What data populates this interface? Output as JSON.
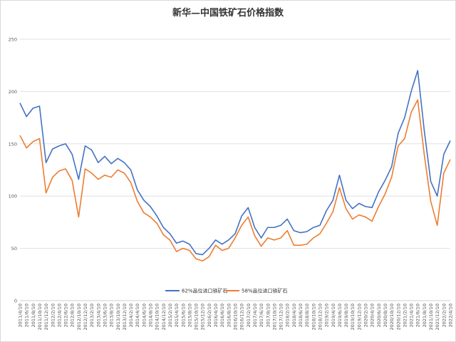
{
  "chart_data": {
    "type": "line",
    "title": "新华—中国铁矿石价格指数",
    "xlabel": "",
    "ylabel": "",
    "ylim": [
      0,
      250
    ],
    "yticks": [
      0,
      50,
      100,
      150,
      200,
      250
    ],
    "grid": true,
    "legend_position": "bottom",
    "colors": {
      "s62": "#4472C4",
      "s58": "#ED7D31",
      "grid": "#d9d9d9",
      "axis": "#bfbfbf"
    },
    "x": [
      "2011/4/10",
      "2011/6/10",
      "2011/8/10",
      "2011/10/10",
      "2011/12/10",
      "2012/2/10",
      "2012/4/10",
      "2012/6/10",
      "2012/8/10",
      "2012/10/10",
      "2012/12/10",
      "2013/2/10",
      "2013/4/10",
      "2013/6/10",
      "2013/8/10",
      "2013/10/10",
      "2013/12/10",
      "2014/2/10",
      "2014/4/10",
      "2014/6/10",
      "2014/8/10",
      "2014/10/10",
      "2014/12/10",
      "2015/2/10",
      "2015/4/10",
      "2015/6/10",
      "2015/8/10",
      "2015/10/10",
      "2015/12/10",
      "2016/2/10",
      "2016/4/10",
      "2016/6/10",
      "2016/8/10",
      "2016/10/10",
      "2016/12/10",
      "2017/2/10",
      "2017/4/10",
      "2017/6/10",
      "2017/8/10",
      "2017/10/10",
      "2017/12/10",
      "2018/2/10",
      "2018/4/10",
      "2018/6/10",
      "2018/8/10",
      "2018/10/10",
      "2018/12/10",
      "2019/2/10",
      "2019/4/10",
      "2019/6/10",
      "2019/8/10",
      "2019/10/10",
      "2019/12/10",
      "2020/2/10",
      "2020/4/10",
      "2020/6/10",
      "2020/8/10",
      "2020/10/10",
      "2020/12/10",
      "2021/2/10",
      "2021/4/10",
      "2021/6/10",
      "2021/8/10",
      "2021/10/10",
      "2021/12/10",
      "2022/2/10",
      "2022/4/10"
    ],
    "series": [
      {
        "name": "62%品位进口铁矿石",
        "key": "s62",
        "values": [
          189,
          176,
          184,
          186,
          132,
          145,
          148,
          150,
          140,
          116,
          148,
          144,
          132,
          138,
          131,
          136,
          132,
          125,
          106,
          96,
          90,
          81,
          70,
          64,
          55,
          57,
          54,
          45,
          44,
          50,
          58,
          54,
          58,
          64,
          81,
          89,
          70,
          60,
          70,
          70,
          72,
          78,
          67,
          65,
          66,
          70,
          72,
          86,
          96,
          120,
          96,
          88,
          93,
          90,
          89,
          104,
          115,
          128,
          160,
          175,
          200,
          220,
          163,
          114,
          100,
          140,
          153
        ]
      },
      {
        "name": "58%品位进口铁矿石",
        "key": "s58",
        "values": [
          158,
          146,
          152,
          155,
          103,
          118,
          124,
          126,
          115,
          80,
          126,
          122,
          116,
          120,
          118,
          125,
          122,
          113,
          95,
          84,
          80,
          74,
          63,
          58,
          47,
          50,
          48,
          40,
          38,
          42,
          53,
          48,
          50,
          60,
          72,
          80,
          62,
          52,
          60,
          58,
          60,
          67,
          53,
          53,
          54,
          60,
          64,
          74,
          85,
          108,
          88,
          78,
          82,
          80,
          76,
          90,
          102,
          118,
          148,
          155,
          180,
          192,
          140,
          95,
          72,
          122,
          135
        ]
      }
    ]
  }
}
